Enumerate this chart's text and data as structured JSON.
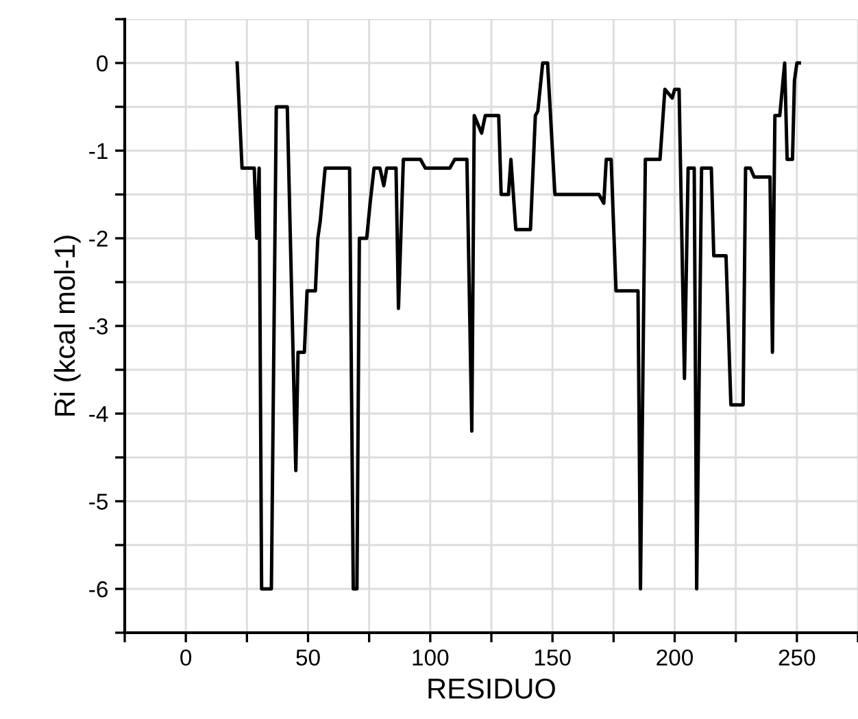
{
  "chart_data": {
    "type": "line",
    "xlabel": "RESIDUO",
    "ylabel": "Ri (kcal mol-1)",
    "x": [
      21,
      23,
      28,
      29,
      30,
      31,
      35,
      37,
      41.5,
      45,
      45.9,
      48.5,
      49.6,
      53,
      54,
      55,
      57,
      67,
      68.5,
      70,
      71,
      74,
      75.4,
      77,
      79.4,
      81,
      82.2,
      86,
      87,
      89,
      96,
      98,
      108,
      110,
      115,
      117,
      118,
      121,
      122.5,
      128,
      129,
      132,
      133,
      135,
      141,
      143,
      144,
      146,
      148,
      149,
      151,
      169,
      171,
      172,
      174,
      176,
      185,
      186,
      188,
      194,
      196,
      199,
      200,
      201.8,
      204,
      205.5,
      208,
      209,
      211,
      215,
      216,
      221,
      223,
      228,
      229,
      231,
      232.5,
      239,
      240,
      241,
      243,
      245,
      246,
      248.2,
      249,
      250,
      251
    ],
    "series": [
      {
        "color": "#000000",
        "values": [
          0,
          -1.2,
          -1.2,
          -2.0,
          -1.2,
          -6.0,
          -6.0,
          -0.5,
          -0.5,
          -4.65,
          -3.3,
          -3.3,
          -2.6,
          -2.6,
          -2.0,
          -1.8,
          -1.2,
          -1.2,
          -6.0,
          -6.0,
          -2.0,
          -2.0,
          -1.6,
          -1.2,
          -1.2,
          -1.4,
          -1.2,
          -1.2,
          -2.8,
          -1.1,
          -1.1,
          -1.2,
          -1.2,
          -1.1,
          -1.1,
          -4.2,
          -0.6,
          -0.8,
          -0.6,
          -0.6,
          -1.5,
          -1.5,
          -1.1,
          -1.9,
          -1.9,
          -0.6,
          -0.55,
          0,
          0,
          -0.5,
          -1.5,
          -1.5,
          -1.6,
          -1.1,
          -1.1,
          -2.6,
          -2.6,
          -6.0,
          -1.1,
          -1.1,
          -0.3,
          -0.4,
          -0.3,
          -0.3,
          -3.6,
          -1.2,
          -1.2,
          -6.0,
          -1.2,
          -1.2,
          -2.2,
          -2.2,
          -3.9,
          -3.9,
          -1.2,
          -1.2,
          -1.3,
          -1.3,
          -3.3,
          -0.6,
          -0.6,
          0,
          -1.1,
          -1.1,
          -0.2,
          0,
          0
        ]
      }
    ],
    "xlim": [
      -25,
      275
    ],
    "xticks": [
      {
        "value": -25,
        "label": null
      },
      0,
      {
        "value": 25,
        "label": null
      },
      50,
      {
        "value": 75,
        "label": null
      },
      100,
      {
        "value": 125,
        "label": null
      },
      150,
      {
        "value": 175,
        "label": null
      },
      200,
      {
        "value": 225,
        "label": null
      },
      250,
      {
        "value": 275,
        "label": null
      }
    ],
    "ylim": [
      -6.5,
      0.5
    ],
    "yticks": [
      {
        "value": -6.5,
        "label": null
      },
      -6,
      {
        "value": -5.5,
        "label": null
      },
      -5,
      {
        "value": -4.5,
        "label": null
      },
      -4,
      {
        "value": -3.5,
        "label": null
      },
      -3,
      {
        "value": -2.5,
        "label": null
      },
      -2,
      {
        "value": -1.5,
        "label": null
      },
      -1,
      {
        "value": -0.5,
        "label": null
      },
      0,
      {
        "value": 0.5,
        "label": null
      }
    ],
    "grid": true,
    "marker": "none",
    "line_style": "solid"
  }
}
